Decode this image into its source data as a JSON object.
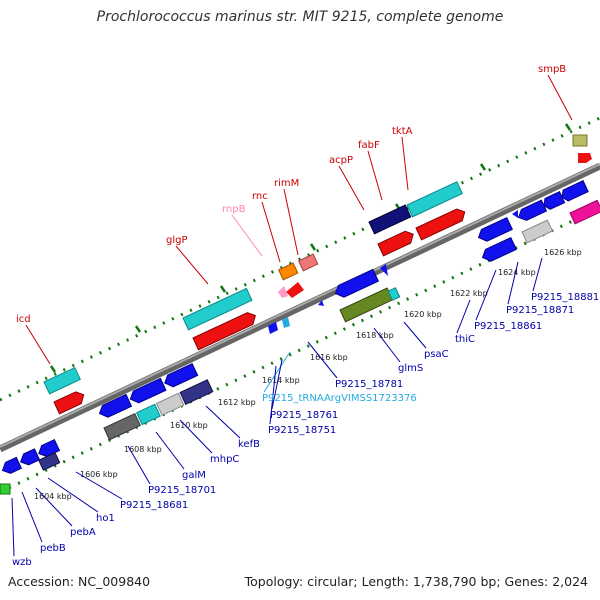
{
  "title": "Prochlorococcus marinus str. MIT 9215, complete genome",
  "footer": {
    "accession": "Accession: NC_009840",
    "stats": "Topology: circular; Length: 1,738,790 bp; Genes: 2,024"
  },
  "colors": {
    "forward_label": "#cc0000",
    "reverse_label": "#0000aa",
    "rrna_label": "#ff88aa",
    "trna_label": "#22aadd",
    "backbone": "#888888",
    "tick": "#117711"
  },
  "ruler": [
    "1604 kbp",
    "1606 kbp",
    "1608 kbp",
    "1610 kbp",
    "1612 kbp",
    "1614 kbp",
    "1616 kbp",
    "1618 kbp",
    "1620 kbp",
    "1622 kbp",
    "1624 kbp",
    "1626 kbp"
  ],
  "top_labels": [
    "smpB",
    "tktA",
    "fabF",
    "acpP",
    "rimM",
    "rnc",
    "rnpB",
    "glgP",
    "icd"
  ],
  "bottom_labels": [
    "P9215_18881",
    "P9215_18871",
    "P9215_18861",
    "thiC",
    "psaC",
    "glmS",
    "P9215_18781",
    "P9215_tRNAArgVIMSS1723376",
    "P9215_18761",
    "P9215_18751",
    "kefB",
    "mhpC",
    "galM",
    "P9215_18701",
    "P9215_18681",
    "ho1",
    "pebA",
    "pebB",
    "wzb"
  ]
}
